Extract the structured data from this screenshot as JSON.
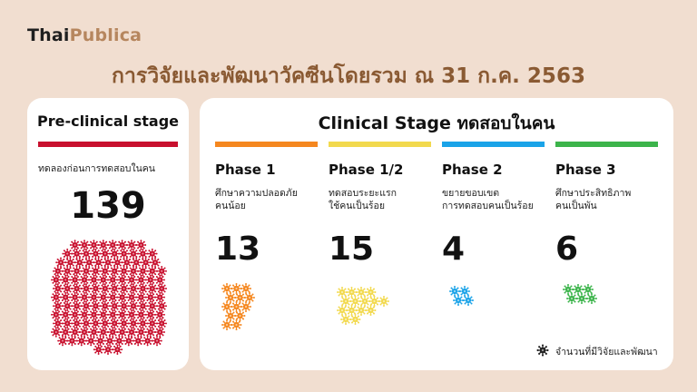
{
  "header": {
    "logo_part1": "Thai",
    "logo_part2": "Publica",
    "title": "การวิจัยและพัฒนาวัคซีนโดยรวม ณ 31 ก.ค. 2563"
  },
  "preclinical": {
    "heading": "Pre-clinical stage",
    "bar_color": "#c8102e",
    "description": "ทดลองก่อนการทดสอบในคน",
    "count": "139",
    "icon": "virus-icon"
  },
  "clinical": {
    "heading": "Clinical Stage ทดสอบในคน",
    "phases": [
      {
        "name": "Phase 1",
        "desc_line1": "ศึกษาความปลอดภัย",
        "desc_line2": "คนน้อย",
        "count": "13",
        "color": "#f5871f"
      },
      {
        "name": "Phase 1/2",
        "desc_line1": "ทดสอบระยะแรก",
        "desc_line2": "ใช้คนเป็นร้อย",
        "count": "15",
        "color": "#f2d94e"
      },
      {
        "name": "Phase 2",
        "desc_line1": "ขยายขอบเขต",
        "desc_line2": "การทดสอบคนเป็นร้อย",
        "count": "4",
        "color": "#1aa3e8"
      },
      {
        "name": "Phase 3",
        "desc_line1": "ศึกษาประสิทธิภาพ",
        "desc_line2": "คนเป็นพัน",
        "count": "6",
        "color": "#3cb44b"
      }
    ]
  },
  "legend": {
    "label": "จำนวนที่มีวิจัยและพัฒนา",
    "icon": "virus-icon",
    "color": "#222222"
  }
}
